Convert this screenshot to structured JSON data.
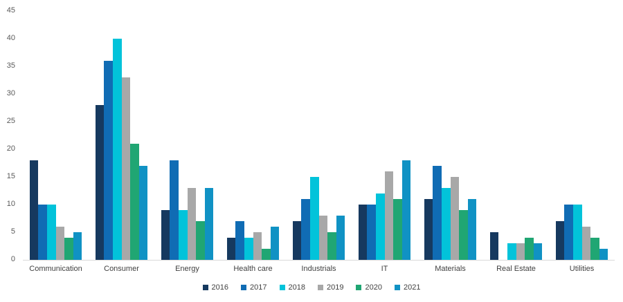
{
  "chart_data": {
    "type": "bar",
    "title": "",
    "categories": [
      "Communication",
      "Consumer",
      "Energy",
      "Health care",
      "Industrials",
      "IT",
      "Materials",
      "Real Estate",
      "Utilities"
    ],
    "series": [
      {
        "name": "2016",
        "color": "#16395f",
        "values": [
          18,
          28,
          9,
          4,
          7,
          10,
          11,
          5,
          7
        ]
      },
      {
        "name": "2017",
        "color": "#106cb4",
        "values": [
          10,
          36,
          18,
          7,
          11,
          10,
          17,
          0,
          10
        ]
      },
      {
        "name": "2018",
        "color": "#02c3da",
        "values": [
          10,
          40,
          9,
          4,
          15,
          12,
          13,
          3,
          10
        ]
      },
      {
        "name": "2019",
        "color": "#a8a8a8",
        "values": [
          6,
          33,
          13,
          5,
          8,
          16,
          15,
          3,
          6
        ]
      },
      {
        "name": "2020",
        "color": "#20a673",
        "values": [
          4,
          21,
          7,
          2,
          5,
          11,
          9,
          4,
          4
        ]
      },
      {
        "name": "2021",
        "color": "#1092c4",
        "values": [
          5,
          17,
          13,
          6,
          8,
          18,
          11,
          3,
          2
        ]
      }
    ],
    "xlabel": "",
    "ylabel": "",
    "ylim": [
      0,
      45
    ],
    "yticks": [
      0,
      5,
      10,
      15,
      20,
      25,
      30,
      35,
      40,
      45
    ],
    "grid": false,
    "legend_position": "bottom"
  },
  "colors": {
    "background": "#ffffff",
    "axis_line": "#d9d9d9",
    "y_tick_label": "#595959",
    "category_label": "#404040",
    "legend_label": "#404040"
  }
}
